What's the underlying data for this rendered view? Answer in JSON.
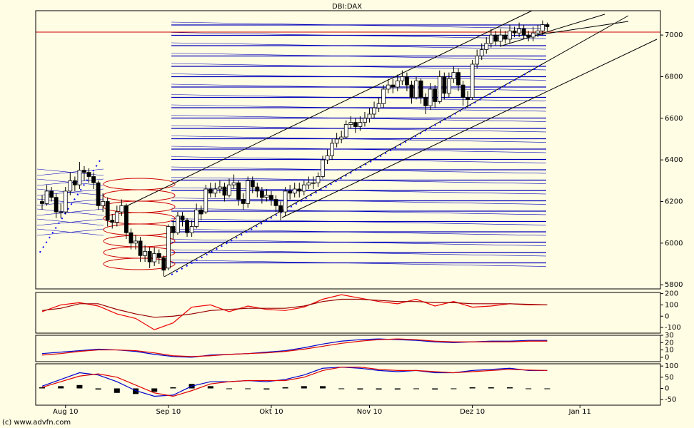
{
  "chart_data": [
    {
      "type": "candlestick",
      "title": "DBI:DAX",
      "categories": [
        null,
        null,
        null,
        null,
        null,
        "Aug 10",
        null,
        null,
        null,
        null,
        null,
        null,
        null,
        null,
        null,
        null,
        null,
        null,
        null,
        null,
        null,
        null,
        null,
        null,
        null,
        null,
        null,
        "Sep 10",
        null,
        null,
        null,
        null,
        null,
        null,
        null,
        null,
        null,
        null,
        null,
        null,
        null,
        null,
        null,
        null,
        null,
        null,
        null,
        null,
        null,
        "Okt 10",
        null,
        null,
        null,
        null,
        null,
        null,
        null,
        null,
        null,
        null,
        null,
        null,
        null,
        null,
        null,
        null,
        null,
        null,
        null,
        null,
        "Nov 10",
        null,
        null,
        null,
        null,
        null,
        null,
        null,
        null,
        null,
        null,
        null,
        null,
        null,
        null,
        null,
        null,
        null,
        null,
        null,
        null,
        null,
        "Dez 10",
        null,
        null,
        null,
        null,
        null,
        null,
        null,
        null,
        null,
        null,
        null,
        null,
        null,
        null,
        null,
        null,
        null,
        null,
        null,
        null,
        null,
        null,
        "Jan 11",
        null,
        null,
        null,
        null,
        null,
        null,
        null,
        null,
        null,
        null,
        null,
        null,
        null,
        null,
        null,
        null,
        null
      ],
      "ohlc": [
        [
          6200,
          6230,
          6160,
          6190
        ],
        [
          6190,
          6280,
          6180,
          6250
        ],
        [
          6250,
          6270,
          6200,
          6220
        ],
        [
          6220,
          6240,
          6120,
          6150
        ],
        [
          6150,
          6190,
          6120,
          6150
        ],
        [
          6150,
          6270,
          6140,
          6250
        ],
        [
          6250,
          6340,
          6230,
          6300
        ],
        [
          6300,
          6320,
          6250,
          6280
        ],
        [
          6280,
          6390,
          6260,
          6350
        ],
        [
          6350,
          6370,
          6300,
          6340
        ],
        [
          6340,
          6360,
          6290,
          6320
        ],
        [
          6320,
          6340,
          6260,
          6290
        ],
        [
          6290,
          6300,
          6160,
          6180
        ],
        [
          6180,
          6240,
          6150,
          6200
        ],
        [
          6200,
          6220,
          6080,
          6110
        ],
        [
          6110,
          6140,
          6070,
          6100
        ],
        [
          6100,
          6180,
          6080,
          6150
        ],
        [
          6150,
          6210,
          6130,
          6180
        ],
        [
          6180,
          6190,
          6020,
          6050
        ],
        [
          6050,
          6070,
          5970,
          6000
        ],
        [
          6000,
          6040,
          5970,
          6010
        ],
        [
          6010,
          6030,
          5910,
          5940
        ],
        [
          5940,
          5990,
          5910,
          5960
        ],
        [
          5960,
          5980,
          5880,
          5910
        ],
        [
          5910,
          5980,
          5890,
          5950
        ],
        [
          5950,
          5970,
          5900,
          5930
        ],
        [
          5930,
          5940,
          5840,
          5870
        ],
        [
          5880,
          6090,
          5870,
          6080
        ],
        [
          6080,
          6110,
          6020,
          6050
        ],
        [
          6050,
          6150,
          6040,
          6130
        ],
        [
          6130,
          6150,
          6080,
          6110
        ],
        [
          6110,
          6120,
          6030,
          6050
        ],
        [
          6050,
          6110,
          6030,
          6080
        ],
        [
          6080,
          6190,
          6070,
          6160
        ],
        [
          6160,
          6180,
          6110,
          6140
        ],
        [
          6150,
          6280,
          6140,
          6260
        ],
        [
          6260,
          6290,
          6220,
          6240
        ],
        [
          6240,
          6290,
          6220,
          6260
        ],
        [
          6260,
          6300,
          6240,
          6270
        ],
        [
          6270,
          6290,
          6200,
          6230
        ],
        [
          6230,
          6310,
          6220,
          6280
        ],
        [
          6280,
          6330,
          6260,
          6290
        ],
        [
          6290,
          6300,
          6180,
          6210
        ],
        [
          6210,
          6240,
          6160,
          6190
        ],
        [
          6190,
          6320,
          6170,
          6300
        ],
        [
          6300,
          6320,
          6240,
          6270
        ],
        [
          6270,
          6290,
          6220,
          6250
        ],
        [
          6250,
          6270,
          6190,
          6220
        ],
        [
          6220,
          6260,
          6200,
          6230
        ],
        [
          6230,
          6250,
          6180,
          6210
        ],
        [
          6210,
          6230,
          6150,
          6180
        ],
        [
          6180,
          6200,
          6110,
          6150
        ],
        [
          6150,
          6270,
          6130,
          6250
        ],
        [
          6250,
          6280,
          6210,
          6240
        ],
        [
          6240,
          6290,
          6220,
          6260
        ],
        [
          6260,
          6290,
          6220,
          6250
        ],
        [
          6250,
          6300,
          6230,
          6280
        ],
        [
          6280,
          6320,
          6260,
          6290
        ],
        [
          6290,
          6320,
          6260,
          6290
        ],
        [
          6290,
          6340,
          6270,
          6320
        ],
        [
          6320,
          6420,
          6310,
          6400
        ],
        [
          6400,
          6450,
          6380,
          6420
        ],
        [
          6420,
          6500,
          6400,
          6480
        ],
        [
          6480,
          6530,
          6460,
          6500
        ],
        [
          6500,
          6540,
          6480,
          6510
        ],
        [
          6510,
          6590,
          6500,
          6570
        ],
        [
          6570,
          6610,
          6550,
          6580
        ],
        [
          6580,
          6600,
          6530,
          6560
        ],
        [
          6560,
          6610,
          6540,
          6580
        ],
        [
          6580,
          6630,
          6560,
          6600
        ],
        [
          6600,
          6650,
          6580,
          6620
        ],
        [
          6620,
          6680,
          6600,
          6650
        ],
        [
          6650,
          6700,
          6630,
          6670
        ],
        [
          6670,
          6760,
          6650,
          6740
        ],
        [
          6740,
          6790,
          6720,
          6760
        ],
        [
          6760,
          6790,
          6720,
          6750
        ],
        [
          6750,
          6810,
          6730,
          6780
        ],
        [
          6780,
          6830,
          6760,
          6800
        ],
        [
          6800,
          6820,
          6730,
          6760
        ],
        [
          6760,
          6780,
          6670,
          6700
        ],
        [
          6700,
          6800,
          6690,
          6780
        ],
        [
          6780,
          6790,
          6670,
          6700
        ],
        [
          6700,
          6720,
          6620,
          6660
        ],
        [
          6660,
          6770,
          6640,
          6740
        ],
        [
          6740,
          6760,
          6650,
          6680
        ],
        [
          6680,
          6830,
          6670,
          6800
        ],
        [
          6800,
          6820,
          6690,
          6720
        ],
        [
          6720,
          6820,
          6700,
          6790
        ],
        [
          6790,
          6850,
          6770,
          6820
        ],
        [
          6820,
          6840,
          6730,
          6760
        ],
        [
          6760,
          6780,
          6660,
          6700
        ],
        [
          6700,
          6730,
          6650,
          6690
        ],
        [
          6700,
          6880,
          6690,
          6860
        ],
        [
          6860,
          6930,
          6840,
          6900
        ],
        [
          6900,
          6960,
          6880,
          6930
        ],
        [
          6930,
          6990,
          6910,
          6960
        ],
        [
          6960,
          7030,
          6940,
          7000
        ],
        [
          7000,
          7020,
          6950,
          6970
        ],
        [
          6970,
          7030,
          6950,
          7000
        ],
        [
          7000,
          7020,
          6960,
          6980
        ],
        [
          6980,
          7050,
          6960,
          7020
        ],
        [
          7020,
          7040,
          6990,
          7010
        ],
        [
          7010,
          7060,
          6990,
          7030
        ],
        [
          7030,
          7050,
          6980,
          7000
        ],
        [
          7000,
          7020,
          6970,
          6990
        ],
        [
          6990,
          7040,
          6970,
          7010
        ],
        [
          7010,
          7050,
          6990,
          7020
        ],
        [
          7020,
          7070,
          7000,
          7050
        ],
        [
          7050,
          7060,
          7020,
          7040
        ],
        null,
        null,
        null,
        null,
        null,
        null,
        null,
        null,
        null,
        null,
        null,
        null,
        null,
        null,
        null,
        null,
        null,
        null,
        null,
        null,
        null,
        null,
        null,
        null
      ],
      "up_color": "#ffffff",
      "down_color": "#000000",
      "ylim": [
        5780,
        7117
      ],
      "yticks": [
        5800,
        6000,
        6200,
        6400,
        6600,
        6800,
        7000
      ]
    },
    {
      "type": "line",
      "categories": [
        null,
        null,
        null,
        null,
        null,
        null,
        null,
        null,
        null,
        null,
        null,
        null,
        null,
        null,
        null,
        null,
        null,
        null,
        null,
        null,
        null,
        null,
        null,
        null,
        null,
        null,
        null,
        null
      ],
      "series": [
        {
          "color": "#ee0000",
          "values": [
            40,
            100,
            120,
            90,
            20,
            -20,
            -120,
            -60,
            80,
            100,
            40,
            90,
            60,
            50,
            80,
            150,
            190,
            160,
            130,
            110,
            150,
            90,
            130,
            80,
            90,
            110,
            100,
            100
          ]
        },
        {
          "color": "#990000",
          "values": [
            50,
            70,
            110,
            110,
            60,
            20,
            -10,
            0,
            20,
            50,
            60,
            70,
            70,
            70,
            90,
            130,
            150,
            150,
            140,
            130,
            130,
            120,
            120,
            110,
            110,
            110,
            105,
            100
          ]
        }
      ],
      "ylim": [
        -150,
        210
      ],
      "yticks": [
        200,
        100,
        0,
        -100
      ]
    },
    {
      "type": "line",
      "categories": [
        null,
        null,
        null,
        null,
        null,
        null,
        null,
        null,
        null,
        null,
        null,
        null,
        null,
        null,
        null,
        null,
        null,
        null,
        null,
        null,
        null,
        null,
        null,
        null,
        null,
        null,
        null,
        null
      ],
      "series": [
        {
          "color": "#0000cc",
          "values": [
            5,
            7,
            9,
            11,
            10,
            8,
            4,
            1,
            0,
            3,
            4,
            5,
            7,
            9,
            13,
            18,
            22,
            24,
            25,
            24,
            23,
            21,
            20,
            21,
            22,
            22,
            23,
            23
          ]
        },
        {
          "color": "#dd0000",
          "values": [
            3,
            5,
            8,
            10,
            10,
            9,
            6,
            2,
            1,
            2,
            4,
            5,
            6,
            8,
            11,
            15,
            19,
            22,
            24,
            25,
            24,
            22,
            21,
            21,
            21,
            21,
            22,
            22
          ]
        }
      ],
      "ylim": [
        -6,
        30
      ],
      "yticks": [
        30,
        20,
        10,
        0
      ]
    },
    {
      "type": "line",
      "categories": [
        null,
        null,
        null,
        null,
        null,
        null,
        null,
        null,
        null,
        null,
        null,
        null,
        null,
        null,
        null,
        null,
        null,
        null,
        null,
        null,
        null,
        null,
        null,
        null,
        null,
        null,
        null,
        null
      ],
      "series": [
        {
          "color": "#0000cc",
          "values": [
            10,
            40,
            70,
            60,
            30,
            -10,
            -35,
            -30,
            10,
            30,
            30,
            35,
            30,
            40,
            60,
            90,
            95,
            90,
            80,
            75,
            80,
            70,
            70,
            80,
            85,
            90,
            80,
            80
          ]
        },
        {
          "color": "#dd0000",
          "values": [
            5,
            30,
            55,
            65,
            50,
            15,
            -20,
            -35,
            -10,
            20,
            30,
            35,
            35,
            35,
            50,
            80,
            95,
            95,
            85,
            80,
            80,
            75,
            70,
            75,
            80,
            85,
            82,
            80
          ]
        }
      ],
      "histogram": {
        "color": "#000000",
        "values": [
          5,
          10,
          15,
          -5,
          -20,
          -25,
          -15,
          5,
          20,
          10,
          0,
          0,
          -5,
          5,
          10,
          10,
          0,
          -5,
          -5,
          -5,
          0,
          -5,
          0,
          5,
          5,
          5,
          -2,
          0
        ]
      },
      "ylim": [
        -75,
        110
      ],
      "yticks": [
        100,
        50,
        0,
        -50
      ]
    }
  ],
  "footer": "(c) www.advfn.com"
}
